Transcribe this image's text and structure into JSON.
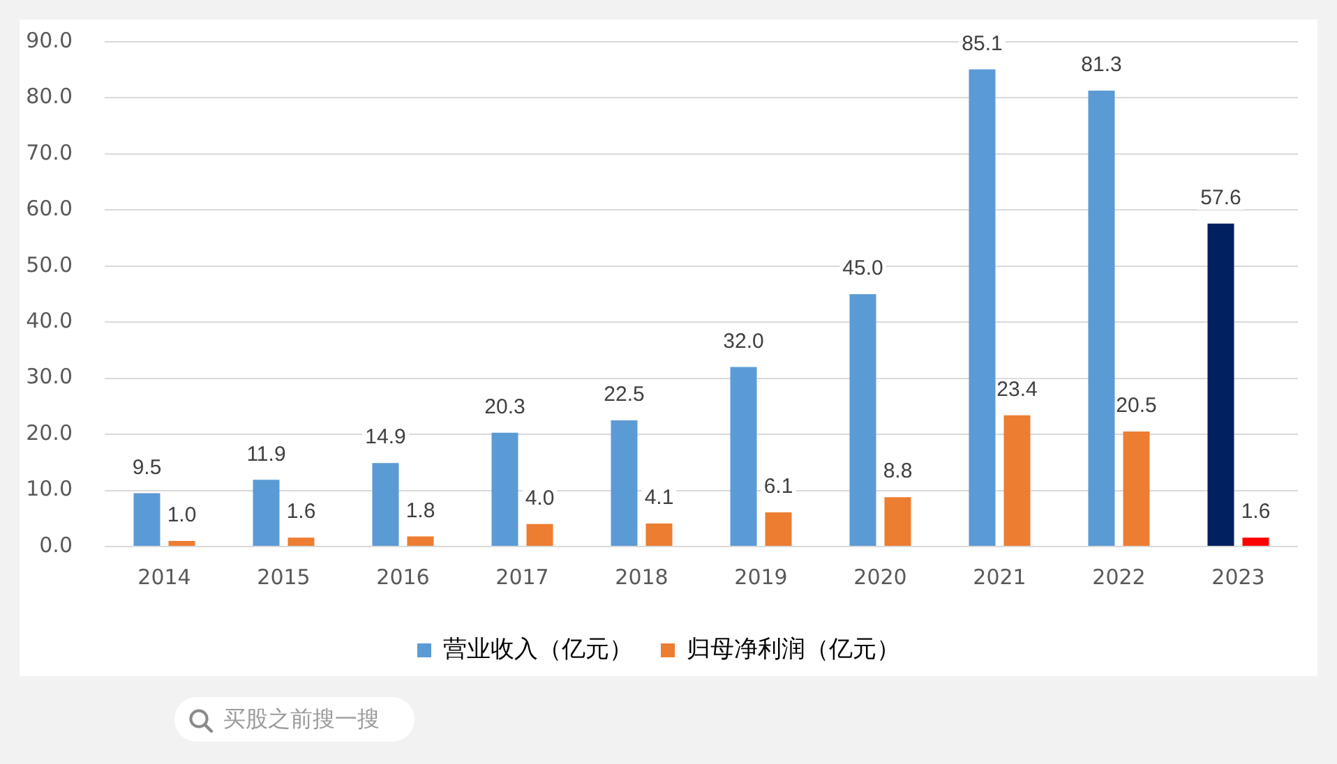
{
  "chart_data": {
    "type": "bar",
    "categories": [
      "2014",
      "2015",
      "2016",
      "2017",
      "2018",
      "2019",
      "2020",
      "2021",
      "2022",
      "2023"
    ],
    "series": [
      {
        "name": "营业收入（亿元）",
        "color": "#5b9bd5",
        "colors": [
          "#5b9bd5",
          "#5b9bd5",
          "#5b9bd5",
          "#5b9bd5",
          "#5b9bd5",
          "#5b9bd5",
          "#5b9bd5",
          "#5b9bd5",
          "#5b9bd5",
          "#002060"
        ],
        "values": [
          9.5,
          11.9,
          14.9,
          20.3,
          22.5,
          32.0,
          45.0,
          85.1,
          81.3,
          57.6
        ],
        "value_labels": [
          "9.5",
          "11.9",
          "14.9",
          "20.3",
          "22.5",
          "32.0",
          "45.0",
          "85.1",
          "81.3",
          "57.6"
        ]
      },
      {
        "name": "归母净利润（亿元）",
        "color": "#ed7d31",
        "colors": [
          "#ed7d31",
          "#ed7d31",
          "#ed7d31",
          "#ed7d31",
          "#ed7d31",
          "#ed7d31",
          "#ed7d31",
          "#ed7d31",
          "#ed7d31",
          "#ff0000"
        ],
        "values": [
          1.0,
          1.6,
          1.8,
          4.0,
          4.1,
          6.1,
          8.8,
          23.4,
          20.5,
          1.6
        ],
        "value_labels": [
          "1.0",
          "1.6",
          "1.8",
          "4.0",
          "4.1",
          "6.1",
          "8.8",
          "23.4",
          "20.5",
          "1.6"
        ]
      }
    ],
    "ylim": [
      0,
      90
    ],
    "yticks": [
      {
        "value": 0,
        "label": "0.0"
      },
      {
        "value": 10,
        "label": "10.0"
      },
      {
        "value": 20,
        "label": "20.0"
      },
      {
        "value": 30,
        "label": "30.0"
      },
      {
        "value": 40,
        "label": "40.0"
      },
      {
        "value": 50,
        "label": "50.0"
      },
      {
        "value": 60,
        "label": "60.0"
      },
      {
        "value": 70,
        "label": "70.0"
      },
      {
        "value": 80,
        "label": "80.0"
      },
      {
        "value": 90,
        "label": "90.0"
      }
    ],
    "grid": "y",
    "legend": "bottom",
    "annotations": [
      "买股之前搜一搜"
    ]
  }
}
